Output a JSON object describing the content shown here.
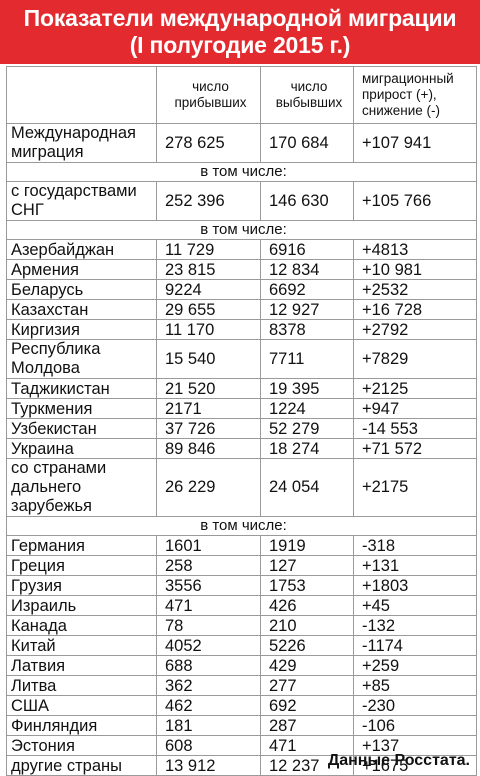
{
  "title": {
    "line1": "Показатели международной миграции",
    "line2": "(I полугодие 2015 г.)"
  },
  "table": {
    "headers": [
      "",
      "число прибывших",
      "число выбывших",
      "миграционный прирост (+), снижение (-)"
    ],
    "rows": [
      {
        "name": "Международная миграция",
        "arrived": "278 625",
        "departed": "170 684",
        "growth": "+107 941",
        "lines": 2
      },
      {
        "section": "в том числе:"
      },
      {
        "name": "с государствами СНГ",
        "arrived": "252 396",
        "departed": "146 630",
        "growth": "+105 766",
        "lines": 2
      },
      {
        "section": "в том числе:"
      },
      {
        "name": "Азербайджан",
        "arrived": "11 729",
        "departed": "6916",
        "growth": "+4813"
      },
      {
        "name": "Армения",
        "arrived": "23 815",
        "departed": "12 834",
        "growth": "+10 981"
      },
      {
        "name": "Беларусь",
        "arrived": "9224",
        "departed": "6692",
        "growth": "+2532"
      },
      {
        "name": "Казахстан",
        "arrived": "29 655",
        "departed": "12 927",
        "growth": "+16 728"
      },
      {
        "name": "Киргизия",
        "arrived": "11 170",
        "departed": "8378",
        "growth": "+2792"
      },
      {
        "name": "Республика Молдова",
        "arrived": "15 540",
        "departed": "7711",
        "growth": "+7829",
        "lines": 2
      },
      {
        "name": "Таджикистан",
        "arrived": "21 520",
        "departed": "19 395",
        "growth": "+2125"
      },
      {
        "name": "Туркмения",
        "arrived": "2171",
        "departed": "1224",
        "growth": "+947"
      },
      {
        "name": "Узбекистан",
        "arrived": "37 726",
        "departed": "52 279",
        "growth": "-14 553"
      },
      {
        "name": "Украина",
        "arrived": "89 846",
        "departed": "18 274",
        "growth": "+71 572"
      },
      {
        "name": "со странами дальнего зарубежья",
        "arrived": "26 229",
        "departed": "24 054",
        "growth": "+2175",
        "lines": 3
      },
      {
        "section": "в том числе:"
      },
      {
        "name": "Германия",
        "arrived": "1601",
        "departed": "1919",
        "growth": "-318"
      },
      {
        "name": "Греция",
        "arrived": "258",
        "departed": "127",
        "growth": "+131"
      },
      {
        "name": "Грузия",
        "arrived": "3556",
        "departed": "1753",
        "growth": "+1803"
      },
      {
        "name": "Израиль",
        "arrived": "471",
        "departed": "426",
        "growth": "+45"
      },
      {
        "name": "Канада",
        "arrived": "78",
        "departed": "210",
        "growth": "-132"
      },
      {
        "name": "Китай",
        "arrived": "4052",
        "departed": "5226",
        "growth": "-1174"
      },
      {
        "name": "Латвия",
        "arrived": "688",
        "departed": "429",
        "growth": "+259"
      },
      {
        "name": "Литва",
        "arrived": "362",
        "departed": "277",
        "growth": "+85"
      },
      {
        "name": "США",
        "arrived": "462",
        "departed": "692",
        "growth": "-230"
      },
      {
        "name": "Финляндия",
        "arrived": "181",
        "departed": "287",
        "growth": "-106"
      },
      {
        "name": "Эстония",
        "arrived": "608",
        "departed": "471",
        "growth": "+137"
      },
      {
        "name": "другие страны",
        "arrived": "13 912",
        "departed": "12 237",
        "growth": "+1675"
      }
    ]
  },
  "source": "Данные Росстата."
}
